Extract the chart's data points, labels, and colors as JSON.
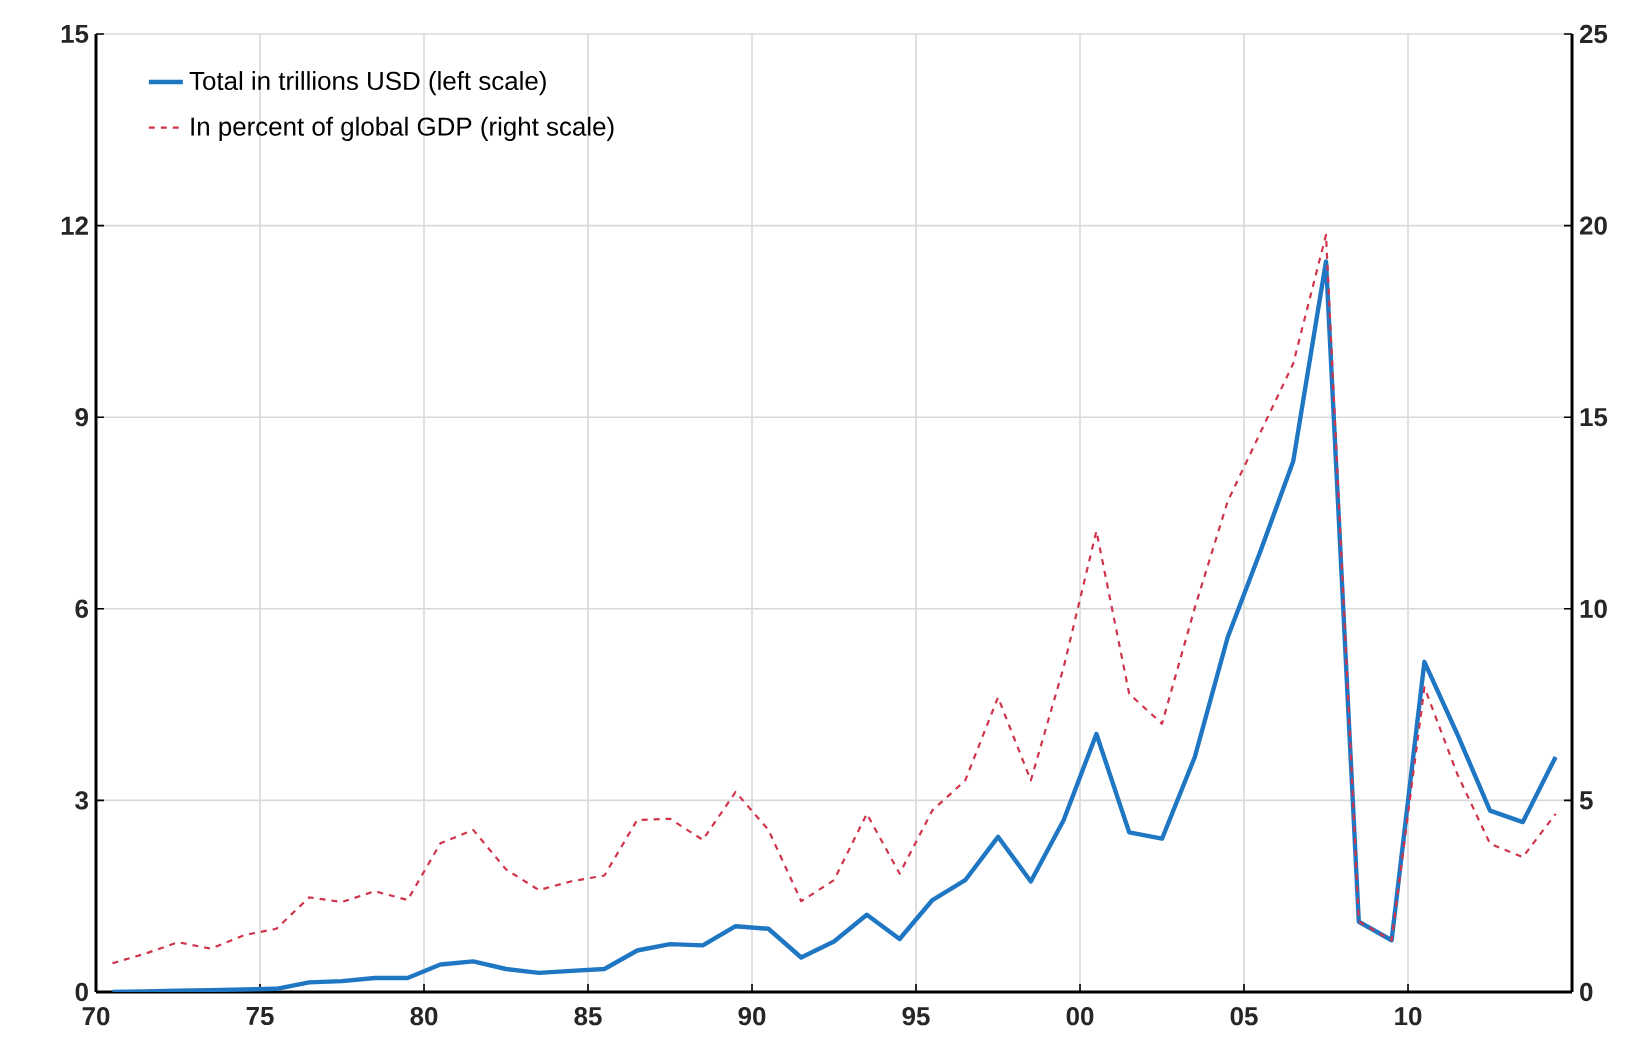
{
  "chart_data": {
    "type": "line",
    "grid": true,
    "legend": "top left",
    "marker": "none",
    "x": [
      1970.5,
      1971.5,
      1972.5,
      1973.5,
      1974.5,
      1975.5,
      1976.5,
      1977.5,
      1978.5,
      1979.5,
      1980.5,
      1981.5,
      1982.5,
      1983.5,
      1984.5,
      1985.5,
      1986.5,
      1987.5,
      1988.5,
      1989.5,
      1990.5,
      1991.5,
      1992.5,
      1993.5,
      1994.5,
      1995.5,
      1996.5,
      1997.5,
      1998.5,
      1999.5,
      2000.5,
      2001.5,
      2002.5,
      2003.5,
      2004.5,
      2005.5,
      2006.5,
      2007.5,
      2008.5,
      2009.5,
      2010.5,
      2011.5,
      2012.5,
      2013.5,
      2014.5
    ],
    "xlim": [
      1970,
      2015
    ],
    "xticks": [
      {
        "value": 1970,
        "label": "70"
      },
      {
        "value": 1975,
        "label": "75"
      },
      {
        "value": 1980,
        "label": "80"
      },
      {
        "value": 1985,
        "label": "85"
      },
      {
        "value": 1990,
        "label": "90"
      },
      {
        "value": 1995,
        "label": "95"
      },
      {
        "value": 2000,
        "label": "00"
      },
      {
        "value": 2005,
        "label": "05"
      },
      {
        "value": 2010,
        "label": "10"
      }
    ],
    "ylim": [
      0,
      15
    ],
    "yticks": [
      0,
      3,
      6,
      9,
      12,
      15
    ],
    "y2lim": [
      0,
      25
    ],
    "y2ticks": [
      0,
      5,
      10,
      15,
      20,
      25
    ],
    "series": [
      {
        "name": "Total in trillions USD (left scale)",
        "color": "#1f77c4",
        "line_style": "solid",
        "values": [
          0.0,
          0.01,
          0.02,
          0.03,
          0.04,
          0.05,
          0.15,
          0.17,
          0.22,
          0.22,
          0.43,
          0.48,
          0.36,
          0.3,
          0.33,
          0.36,
          0.65,
          0.75,
          0.73,
          1.03,
          0.99,
          0.54,
          0.79,
          1.21,
          0.83,
          1.44,
          1.75,
          2.43,
          1.73,
          2.69,
          4.04,
          2.5,
          2.4,
          3.68,
          5.55,
          6.9,
          8.31,
          11.44,
          1.1,
          0.81,
          5.17,
          4.04,
          2.84,
          2.66,
          3.68
        ]
      },
      {
        "name": "In percent of global GDP (right scale)",
        "color": "#d0344a",
        "line_style": "dashed",
        "axis": "y2",
        "values": [
          0.75,
          1.0,
          1.3,
          1.13,
          1.48,
          1.65,
          2.47,
          2.35,
          2.63,
          2.4,
          3.88,
          4.23,
          3.2,
          2.66,
          2.89,
          3.04,
          4.49,
          4.52,
          3.97,
          5.22,
          4.23,
          2.37,
          2.92,
          4.65,
          3.09,
          4.74,
          5.52,
          7.69,
          5.52,
          8.47,
          12.03,
          7.78,
          7.0,
          10.03,
          12.8,
          14.6,
          16.4,
          19.76,
          1.84,
          1.35,
          7.95,
          5.69,
          3.87,
          3.52,
          4.65
        ]
      }
    ]
  }
}
